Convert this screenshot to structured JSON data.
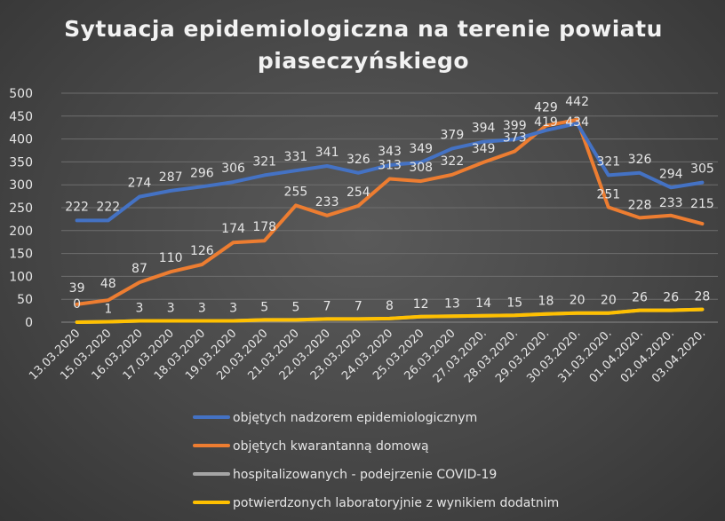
{
  "chart_data": {
    "type": "line",
    "title_lines": [
      "Sytuacja epidemiologiczna na terenie powiatu",
      "piaseczyńskiego"
    ],
    "categories": [
      "13.03.2020",
      "15.03.2020",
      "16.03.2020",
      "17.03.2020",
      "18.03.2020",
      "19.03.2020",
      "20.03.2020",
      "21.03.2020",
      "22.03.2020",
      "23.03.2020",
      "24.03.2020",
      "25.03.2020",
      "26.03.2020",
      "27.03.2020.",
      "28.03.2020.",
      "29.03.2020.",
      "30.03.2020.",
      "31.03.2020.",
      "01.04.2020.",
      "02.04.2020.",
      "03.04.2020."
    ],
    "ylim": [
      0,
      500
    ],
    "yticks": [
      0,
      50,
      100,
      150,
      200,
      250,
      300,
      350,
      400,
      450,
      500
    ],
    "grid": true,
    "legend_position": "bottom",
    "series": [
      {
        "name": "objętych nadzorem epidemiologicznym",
        "color": "#4472c4",
        "values": [
          222,
          222,
          274,
          287,
          296,
          306,
          321,
          331,
          341,
          326,
          343,
          349,
          379,
          394,
          399,
          419,
          434,
          321,
          326,
          294,
          305
        ],
        "labels_shown": true
      },
      {
        "name": "objętych kwarantanną domową",
        "color": "#ed7d31",
        "values": [
          39,
          48,
          87,
          110,
          126,
          174,
          178,
          255,
          233,
          254,
          313,
          308,
          322,
          349,
          373,
          429,
          442,
          251,
          228,
          233,
          215
        ],
        "labels_shown": true
      },
      {
        "name": "hospitalizowanych - podejrzenie COVID-19",
        "color": "#a5a5a5",
        "values": [
          0,
          1,
          3,
          3,
          3,
          3,
          5,
          5,
          7,
          7,
          8,
          12,
          13,
          14,
          15,
          18,
          20,
          20,
          26,
          26,
          28
        ],
        "labels_shown": false
      },
      {
        "name": "potwierdzonych laboratoryjnie z wynikiem dodatnim",
        "color": "#ffc000",
        "values": [
          0,
          1,
          3,
          3,
          3,
          3,
          5,
          5,
          7,
          7,
          8,
          12,
          13,
          14,
          15,
          18,
          20,
          20,
          26,
          26,
          28
        ],
        "labels_shown": true
      }
    ]
  }
}
